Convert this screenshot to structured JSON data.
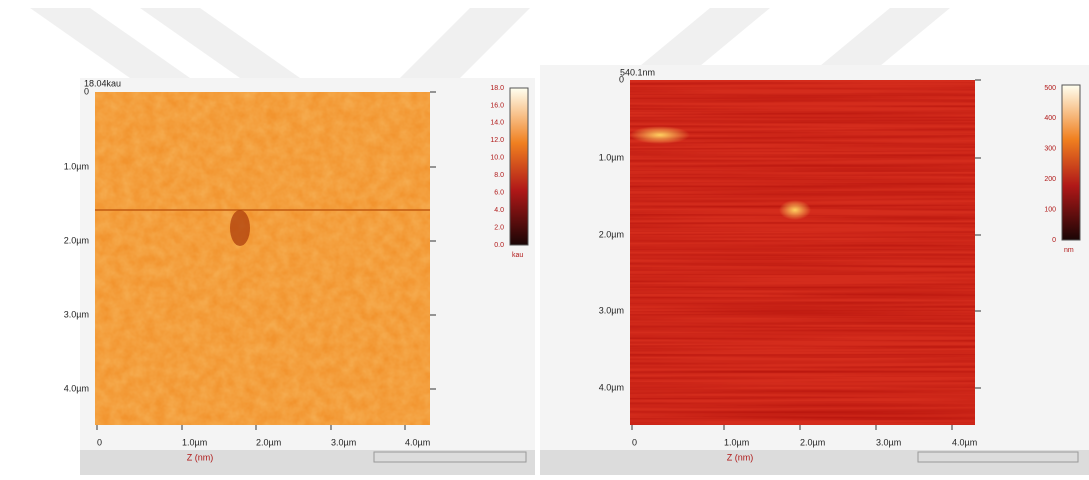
{
  "panels": [
    {
      "header": "18.04kau",
      "y_ticks": [
        "0",
        "1.0µm",
        "2.0µm",
        "3.0µm",
        "4.0µm"
      ],
      "x_ticks": [
        "0",
        "1.0µm",
        "2.0µm",
        "3.0µm",
        "4.0µm"
      ],
      "x_label": "Z (nm)",
      "colorbar_ticks": [
        "18.0",
        "16.0",
        "14.0",
        "12.0",
        "10.0",
        "8.0",
        "6.0",
        "4.0",
        "2.0",
        "0.0"
      ],
      "colorbar_unit": "kau"
    },
    {
      "header": "540.1nm",
      "y_ticks": [
        "0",
        "1.0µm",
        "2.0µm",
        "3.0µm",
        "4.0µm"
      ],
      "x_ticks": [
        "0",
        "1.0µm",
        "2.0µm",
        "3.0µm",
        "4.0µm"
      ],
      "x_label": "Z (nm)",
      "colorbar_ticks": [
        "500",
        "400",
        "300",
        "200",
        "100",
        "0"
      ],
      "colorbar_unit": "nm"
    }
  ]
}
